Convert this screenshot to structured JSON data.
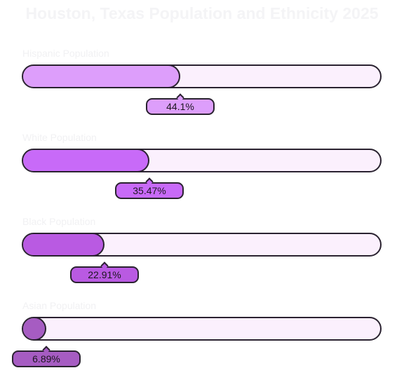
{
  "chart_data": {
    "type": "bar",
    "orientation": "horizontal",
    "title": "Houston, Texas Population and Ethnicity 2025",
    "xlim": [
      0,
      100
    ],
    "unit": "%",
    "grid": false,
    "legend": "none",
    "categories": [
      "Hispanic Population",
      "White Population",
      "Black Population",
      "Asian Population"
    ],
    "values": [
      44.1,
      35.47,
      22.91,
      6.89
    ],
    "value_labels": [
      "44.1%",
      "35.47%",
      "22.91%",
      "6.89%"
    ],
    "colors": [
      "#dd9efb",
      "#c86af8",
      "#b95ae2",
      "#a65cc2"
    ],
    "track_color": "#fbf0fd",
    "outline_color": "#2a2230"
  }
}
